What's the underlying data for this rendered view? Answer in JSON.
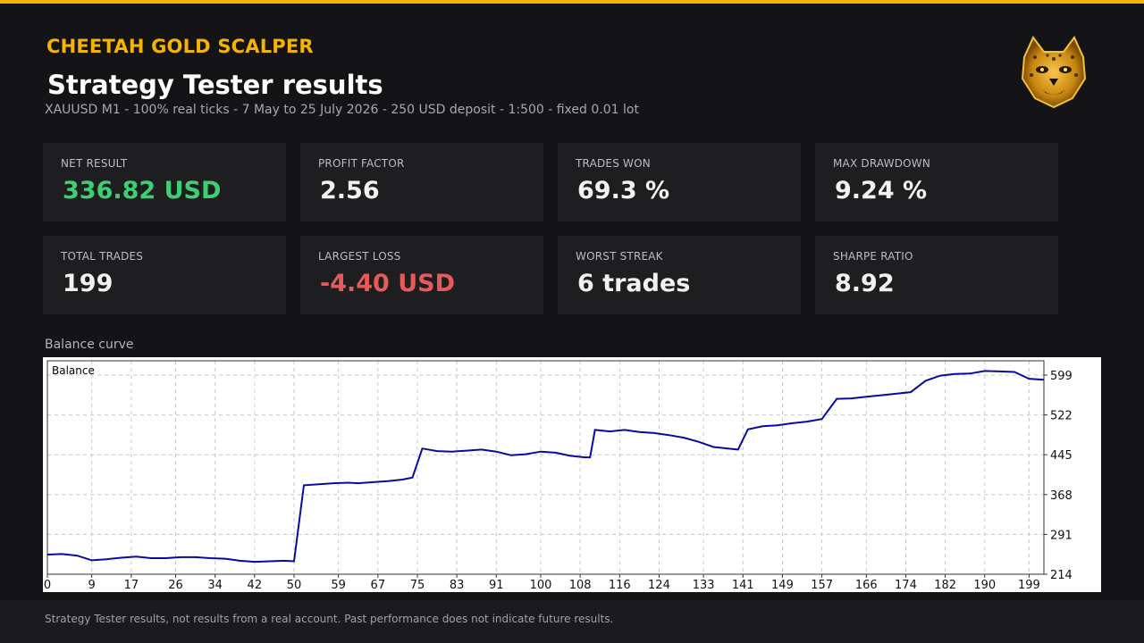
{
  "header": {
    "brand": "CHEETAH GOLD SCALPER",
    "title": "Strategy Tester results",
    "subtitle": "XAUUSD M1  -  100% real ticks  -  7 May to 25 July 2026  -  250 USD deposit  -  1:500  -  fixed 0.01 lot",
    "logo_icon": "cheetah-logo-icon"
  },
  "stats": [
    {
      "label": "NET RESULT",
      "value": "336.82 USD",
      "color": "#3ecf74"
    },
    {
      "label": "PROFIT FACTOR",
      "value": "2.56",
      "color": "#f2f2f2"
    },
    {
      "label": "TRADES WON",
      "value": "69.3 %",
      "color": "#f2f2f2"
    },
    {
      "label": "MAX DRAWDOWN",
      "value": "9.24 %",
      "color": "#f2f2f2"
    },
    {
      "label": "TOTAL TRADES",
      "value": "199",
      "color": "#f2f2f2"
    },
    {
      "label": "LARGEST LOSS",
      "value": "-4.40 USD",
      "color": "#e85a5a"
    },
    {
      "label": "WORST STREAK",
      "value": "6 trades",
      "color": "#f2f2f2"
    },
    {
      "label": "SHARPE RATIO",
      "value": "8.92",
      "color": "#f2f2f2"
    }
  ],
  "chart_label": "Balance curve",
  "chart_data": {
    "type": "line",
    "legend": "Balance",
    "line_color": "#0a0a9e",
    "grid": true,
    "x_ticks": [
      "0",
      "9",
      "17",
      "26",
      "34",
      "42",
      "50",
      "59",
      "67",
      "75",
      "83",
      "91",
      "100",
      "108",
      "116",
      "124",
      "133",
      "141",
      "149",
      "157",
      "166",
      "174",
      "182",
      "190",
      "199"
    ],
    "y_ticks": [
      "599",
      "522",
      "445",
      "368",
      "291",
      "214"
    ],
    "xlim": [
      0,
      202
    ],
    "ylim": [
      214,
      599
    ],
    "series": [
      {
        "name": "Balance",
        "points": [
          [
            0,
            252
          ],
          [
            3,
            253
          ],
          [
            6,
            250
          ],
          [
            9,
            241
          ],
          [
            12,
            243
          ],
          [
            15,
            246
          ],
          [
            18,
            248
          ],
          [
            21,
            245
          ],
          [
            24,
            245
          ],
          [
            27,
            247
          ],
          [
            30,
            247
          ],
          [
            33,
            245
          ],
          [
            36,
            244
          ],
          [
            39,
            240
          ],
          [
            42,
            238
          ],
          [
            45,
            239
          ],
          [
            48,
            240
          ],
          [
            50,
            239
          ],
          [
            52,
            386
          ],
          [
            55,
            388
          ],
          [
            58,
            390
          ],
          [
            61,
            391
          ],
          [
            63,
            390
          ],
          [
            66,
            392
          ],
          [
            69,
            394
          ],
          [
            72,
            397
          ],
          [
            74,
            401
          ],
          [
            76,
            457
          ],
          [
            79,
            452
          ],
          [
            82,
            451
          ],
          [
            85,
            453
          ],
          [
            88,
            455
          ],
          [
            91,
            451
          ],
          [
            94,
            444
          ],
          [
            97,
            446
          ],
          [
            100,
            451
          ],
          [
            103,
            449
          ],
          [
            106,
            443
          ],
          [
            109,
            440
          ],
          [
            110,
            440
          ],
          [
            111,
            493
          ],
          [
            114,
            490
          ],
          [
            117,
            493
          ],
          [
            120,
            489
          ],
          [
            123,
            487
          ],
          [
            126,
            483
          ],
          [
            129,
            478
          ],
          [
            132,
            470
          ],
          [
            135,
            460
          ],
          [
            138,
            457
          ],
          [
            140,
            455
          ],
          [
            142,
            494
          ],
          [
            145,
            500
          ],
          [
            148,
            502
          ],
          [
            151,
            506
          ],
          [
            154,
            509
          ],
          [
            157,
            514
          ],
          [
            160,
            553
          ],
          [
            163,
            554
          ],
          [
            166,
            557
          ],
          [
            169,
            560
          ],
          [
            172,
            563
          ],
          [
            175,
            566
          ],
          [
            178,
            588
          ],
          [
            181,
            598
          ],
          [
            184,
            601
          ],
          [
            187,
            602
          ],
          [
            190,
            607
          ],
          [
            193,
            606
          ],
          [
            196,
            605
          ],
          [
            199,
            592
          ],
          [
            202,
            590
          ]
        ]
      }
    ]
  },
  "footer_text": "Strategy Tester results, not results from a real account. Past performance does not indicate future results."
}
